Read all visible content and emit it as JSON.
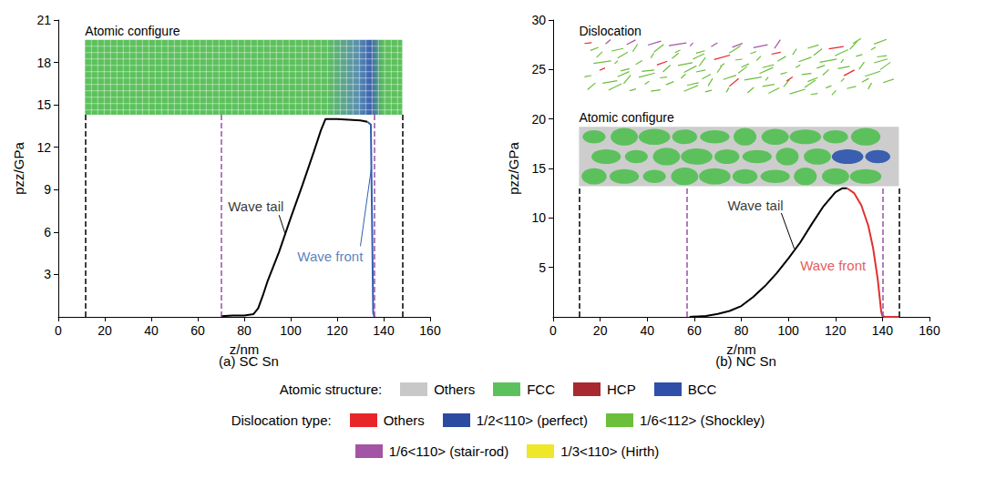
{
  "chart_data": [
    {
      "type": "line",
      "title": "(a) SC Sn",
      "x_label": "z/nm",
      "y_label": "pzz/GPa",
      "xlim": [
        0,
        160
      ],
      "xticks": [
        0,
        20,
        40,
        60,
        80,
        100,
        120,
        140,
        160
      ],
      "ylim": [
        0,
        21
      ],
      "yticks": [
        3,
        6,
        9,
        12,
        15,
        18,
        21
      ],
      "series": [
        {
          "name": "Wave tail",
          "color": "#000000",
          "x": [
            70,
            75,
            80,
            84,
            86,
            88,
            90,
            95,
            100,
            105,
            110,
            113,
            115,
            120,
            125,
            130,
            133
          ],
          "values": [
            0.05,
            0.1,
            0.1,
            0.2,
            0.6,
            1.5,
            2.5,
            4.6,
            7.0,
            9.3,
            11.7,
            13.2,
            14.0,
            14.0,
            13.95,
            13.9,
            13.8
          ],
          "label_at": [
            85,
            7.8
          ],
          "leader": [
            [
              95,
              7.2
            ],
            [
              97.8,
              5.8
            ]
          ]
        },
        {
          "name": "Wave front",
          "color": "#2f5fb0",
          "x": [
            133,
            134.5,
            135,
            135.5,
            136
          ],
          "values": [
            13.8,
            13.6,
            7.0,
            0.3,
            0
          ],
          "label_at": [
            117,
            4.3
          ],
          "leader": [
            [
              130,
              5.0
            ],
            [
              134.7,
              10.5
            ]
          ]
        }
      ],
      "vlines": [
        {
          "x": 11.5,
          "color": "#000000",
          "line_style": "dashed"
        },
        {
          "x": 70,
          "color": "#9b4fa8",
          "line_style": "dashed"
        },
        {
          "x": 136,
          "color": "#9b4fa8",
          "line_style": "dashed"
        },
        {
          "x": 148,
          "color": "#000000",
          "line_style": "dashed"
        }
      ],
      "insets": [
        {
          "text": "Atomic configure",
          "type": "crystal",
          "y_range": [
            14.3,
            19.6
          ]
        }
      ]
    },
    {
      "type": "line",
      "title": "(b) NC Sn",
      "x_label": "z/nm",
      "y_label": "pzz/GPa",
      "xlim": [
        0,
        160
      ],
      "xticks": [
        0,
        20,
        40,
        60,
        80,
        100,
        120,
        140,
        160
      ],
      "ylim": [
        0,
        30
      ],
      "yticks": [
        5,
        10,
        15,
        20,
        25,
        30
      ],
      "series": [
        {
          "name": "Wave tail",
          "color": "#000000",
          "x": [
            58,
            65,
            70,
            75,
            80,
            85,
            90,
            95,
            100,
            105,
            110,
            115,
            120,
            123,
            125
          ],
          "values": [
            0,
            0.1,
            0.3,
            0.6,
            1.1,
            2.0,
            3.1,
            4.4,
            5.9,
            7.5,
            9.4,
            11.2,
            12.6,
            13.0,
            13.0
          ],
          "label_at": [
            86,
            11.3
          ],
          "leader": [
            [
              97,
              10.5
            ],
            [
              102.5,
              6.9
            ]
          ]
        },
        {
          "name": "Wave front",
          "color": "#e03030",
          "x": [
            125,
            128,
            131,
            134,
            136,
            138,
            139.5,
            140,
            141,
            147
          ],
          "values": [
            13.0,
            12.5,
            11.3,
            9.2,
            7.0,
            3.8,
            0.5,
            0.1,
            0,
            0
          ],
          "label_at": [
            119,
            5.2
          ]
        }
      ],
      "vlines": [
        {
          "x": 11,
          "color": "#000000",
          "line_style": "dashed"
        },
        {
          "x": 57,
          "color": "#9b4fa8",
          "line_style": "dashed"
        },
        {
          "x": 140,
          "color": "#9b4fa8",
          "line_style": "dashed"
        },
        {
          "x": 147,
          "color": "#000000",
          "line_style": "dashed"
        }
      ],
      "insets": [
        {
          "text": "Dislocation",
          "type": "lines",
          "y_range": [
            22.0,
            28.0
          ]
        },
        {
          "text": "Atomic configure",
          "type": "grains",
          "y_range": [
            13.2,
            19.2
          ]
        }
      ]
    }
  ],
  "structure_legend": {
    "title": "Atomic structure:",
    "items": [
      {
        "name": "Others",
        "color": "#c8c8c8"
      },
      {
        "name": "FCC",
        "color": "#5cc15c"
      },
      {
        "name": "HCP",
        "color": "#a8292f"
      },
      {
        "name": "BCC",
        "color": "#2f4fa8"
      }
    ]
  },
  "dislocation_legend": {
    "title": "Dislocation type:",
    "items": [
      {
        "name": "Others",
        "color": "#e8262a"
      },
      {
        "name": "1/2<110> (perfect)",
        "color": "#2b4ba0"
      },
      {
        "name": "1/6<112> (Shockley)",
        "color": "#6bbf3a"
      },
      {
        "name": "1/6<110> (stair-rod)",
        "color": "#a454a4"
      },
      {
        "name": "1/3<110> (Hirth)",
        "color": "#f0e62a"
      }
    ]
  }
}
